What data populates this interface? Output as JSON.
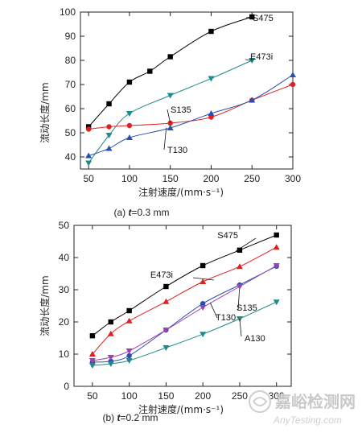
{
  "chart_data": [
    {
      "type": "line",
      "caption": "(a) t=0.3 mm",
      "caption_prefix": "(a) ",
      "caption_var": "t",
      "caption_suffix": "=0.3 mm",
      "xlabel": "注射速度/(mm·s⁻¹)",
      "ylabel": "流动长度/mm",
      "xlim": [
        40,
        300
      ],
      "ylim": [
        35,
        100
      ],
      "xticks": [
        50,
        100,
        150,
        200,
        250,
        300
      ],
      "yticks": [
        40,
        50,
        60,
        70,
        80,
        90,
        100
      ],
      "grid": false,
      "series": [
        {
          "name": "S475",
          "color": "#000000",
          "marker": "square",
          "x": [
            50,
            75,
            100,
            125,
            150,
            200,
            250
          ],
          "y": [
            52.5,
            62,
            71,
            75.5,
            81.5,
            92,
            98
          ]
        },
        {
          "name": "E473i",
          "color": "#1f8a8a",
          "marker": "triangle-down",
          "x": [
            50,
            75,
            100,
            150,
            200,
            250
          ],
          "y": [
            37.5,
            49,
            58,
            65.5,
            72.5,
            80
          ]
        },
        {
          "name": "S135",
          "color": "#e02020",
          "marker": "circle",
          "x": [
            50,
            75,
            100,
            150,
            200,
            250,
            300
          ],
          "y": [
            51.5,
            52.5,
            53,
            54,
            56.5,
            63.5,
            70
          ]
        },
        {
          "name": "T130",
          "color": "#2850b0",
          "marker": "triangle-up",
          "x": [
            50,
            75,
            100,
            150,
            200,
            250,
            300
          ],
          "y": [
            40.5,
            43.5,
            48,
            52,
            58,
            63.5,
            74
          ]
        }
      ]
    },
    {
      "type": "line",
      "caption": "(b) t=0.2 mm",
      "caption_prefix": "(b) ",
      "caption_var": "t",
      "caption_suffix": "=0.2 mm",
      "xlabel": "注射速度/(mm·s⁻¹)",
      "ylabel": "流动长度/mm",
      "xlim": [
        25,
        320
      ],
      "ylim": [
        0,
        50
      ],
      "xticks": [
        50,
        100,
        150,
        200,
        250,
        300
      ],
      "yticks": [
        0,
        10,
        20,
        30,
        40,
        50
      ],
      "grid": false,
      "series": [
        {
          "name": "S475",
          "color": "#000000",
          "marker": "square",
          "x": [
            50,
            75,
            100,
            150,
            200,
            250,
            300
          ],
          "y": [
            15.7,
            20,
            23.5,
            31,
            37.5,
            42.3,
            47
          ]
        },
        {
          "name": "E473i",
          "color": "#e02020",
          "marker": "triangle-up",
          "x": [
            50,
            75,
            100,
            150,
            200,
            250,
            300
          ],
          "y": [
            10,
            16.3,
            20.3,
            26.3,
            32.5,
            37.2,
            43.2
          ]
        },
        {
          "name": "S135",
          "color": "#2850b0",
          "marker": "circle",
          "x": [
            50,
            75,
            100,
            150,
            200,
            250,
            300
          ],
          "y": [
            7.5,
            7.8,
            9.5,
            17.5,
            25.7,
            31.5,
            37.3
          ]
        },
        {
          "name": "T130",
          "color": "#a040b0",
          "marker": "triangle-down",
          "x": [
            50,
            75,
            100,
            150,
            200,
            250,
            300
          ],
          "y": [
            8,
            9,
            11,
            17.5,
            24.5,
            31,
            37.5
          ]
        },
        {
          "name": "A130",
          "color": "#1f8a8a",
          "marker": "triangle-down",
          "x": [
            50,
            75,
            100,
            150,
            200,
            250,
            300
          ],
          "y": [
            6.5,
            7,
            8,
            12,
            16.2,
            21,
            26.2
          ]
        }
      ]
    }
  ],
  "watermark": {
    "cn": "嘉峪检测网",
    "en": "AnyTesting.com"
  }
}
